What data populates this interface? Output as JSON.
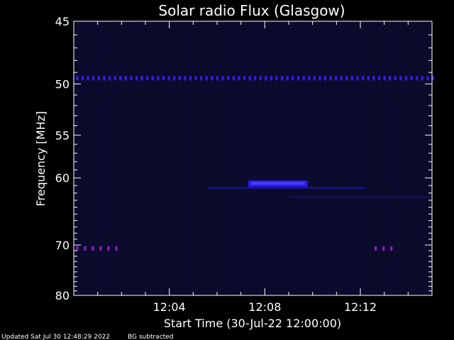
{
  "chart_data": {
    "type": "heatmap",
    "title": "Solar radio Flux (Glasgow)",
    "xlabel": "Start Time (30-Jul-22 12:00:00)",
    "ylabel": "Frequency [MHz]",
    "x_range_minutes": [
      0,
      15
    ],
    "x_ticks": [
      {
        "minutes": 4,
        "label": "12:04"
      },
      {
        "minutes": 8,
        "label": "12:08"
      },
      {
        "minutes": 12,
        "label": "12:12"
      }
    ],
    "ylim": [
      45,
      80
    ],
    "y_scale": "reciprocal",
    "y_ticks": [
      45,
      50,
      55,
      60,
      70,
      80
    ],
    "y_tick_labels": [
      "45",
      "50",
      "55",
      "60",
      "70",
      "80"
    ],
    "background_color": "#0a0a2a",
    "features": [
      {
        "freq_mhz": 49.5,
        "t_start_min": 0.1,
        "t_end_min": 15,
        "color": "#3a1cff",
        "kind": "dotted-band"
      },
      {
        "freq_mhz": 60.7,
        "t_start_min": 7.3,
        "t_end_min": 9.8,
        "color": "#2a1cff",
        "kind": "burst"
      },
      {
        "freq_mhz": 61.3,
        "t_start_min": 5.6,
        "t_end_min": 12.2,
        "color": "#1a1290",
        "kind": "faint-band"
      },
      {
        "freq_mhz": 62.5,
        "t_start_min": 9.0,
        "t_end_min": 15,
        "color": "#15105a",
        "kind": "faint-band"
      },
      {
        "freq_mhz": 70.6,
        "t_start_min": 0.1,
        "t_end_min": 1.9,
        "color": "#a018e0",
        "kind": "dotted-band"
      },
      {
        "freq_mhz": 70.6,
        "t_start_min": 12.6,
        "t_end_min": 13.3,
        "color": "#a018e0",
        "kind": "dotted-band"
      }
    ]
  },
  "footer": {
    "updated": "Updated Sat Jul 30 12:48:29 2022",
    "bg_note": "BG subtracted"
  }
}
